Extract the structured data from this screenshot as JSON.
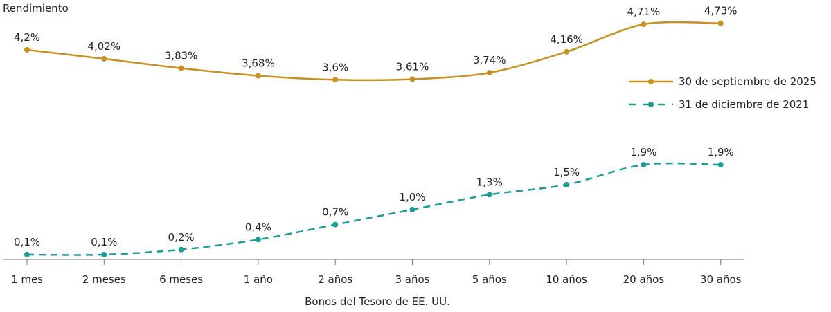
{
  "chart_data": {
    "type": "line",
    "ylabel": "Rendimiento",
    "xlabel": "Bonos del Tesoro de EE. UU.",
    "categories": [
      "1 mes",
      "2 meses",
      "6 meses",
      "1 año",
      "2 años",
      "3 años",
      "5 años",
      "10 años",
      "20 años",
      "30 años"
    ],
    "legend_position": "right",
    "grid": false,
    "series": [
      {
        "name": "30 de septiembre de 2025",
        "color": "#C8901E",
        "style": "solid",
        "values": [
          4.2,
          4.02,
          3.83,
          3.68,
          3.6,
          3.61,
          3.74,
          4.16,
          4.71,
          4.73
        ],
        "labels": [
          "4,2%",
          "4,02%",
          "3,83%",
          "3,68%",
          "3,6%",
          "3,61%",
          "3,74%",
          "4,16%",
          "4,71%",
          "4,73%"
        ]
      },
      {
        "name": "31 de diciembre de 2021",
        "color": "#1A9E96",
        "style": "dashed",
        "values": [
          0.1,
          0.1,
          0.2,
          0.4,
          0.7,
          1.0,
          1.3,
          1.5,
          1.9,
          1.9
        ],
        "labels": [
          "0,1%",
          "0,1%",
          "0,2%",
          "0,4%",
          "0,7%",
          "1,0%",
          "1,3%",
          "1,5%",
          "1,9%",
          "1,9%"
        ]
      }
    ]
  }
}
